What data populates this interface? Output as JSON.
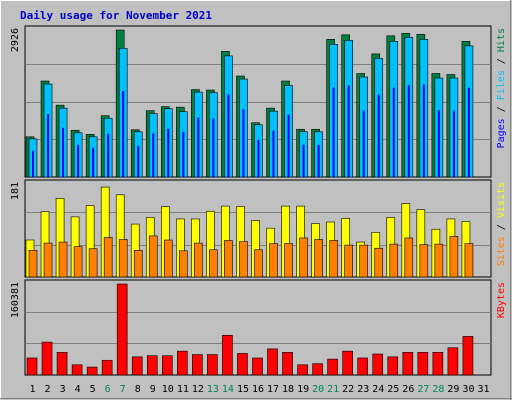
{
  "chart_data": {
    "type": "bar",
    "title": "Daily usage for November 2021",
    "categories": [
      "1",
      "2",
      "3",
      "4",
      "5",
      "6",
      "7",
      "8",
      "9",
      "10",
      "11",
      "12",
      "13",
      "14",
      "15",
      "16",
      "17",
      "18",
      "19",
      "20",
      "21",
      "22",
      "23",
      "24",
      "25",
      "26",
      "27",
      "28",
      "29",
      "30",
      "31"
    ],
    "weekend_days": [
      "6",
      "7",
      "13",
      "14",
      "20",
      "21",
      "27",
      "28"
    ],
    "panels": [
      {
        "id": "hits",
        "ymax_label": "2926",
        "ylim": [
          0,
          2926
        ],
        "legend": [
          "Pages",
          "/",
          "Files",
          "/",
          "Hits"
        ],
        "series": [
          {
            "name": "Hits",
            "values": [
              800,
              1910,
              1430,
              930,
              850,
              1220,
              2926,
              940,
              1320,
              1400,
              1390,
              1740,
              1730,
              2500,
              2010,
              1080,
              1370,
              1910,
              950,
              950,
              2740,
              2830,
              2060,
              2450,
              2810,
              2860,
              2840,
              2060,
              2040,
              2700,
              0
            ]
          },
          {
            "name": "Files",
            "values": [
              760,
              1850,
              1370,
              880,
              800,
              1170,
              2560,
              900,
              1260,
              1360,
              1300,
              1690,
              1680,
              2410,
              1950,
              1040,
              1310,
              1820,
              900,
              900,
              2640,
              2720,
              1990,
              2360,
              2700,
              2780,
              2740,
              1970,
              1970,
              2610,
              0
            ]
          },
          {
            "name": "Pages",
            "values": [
              520,
              1250,
              980,
              640,
              580,
              860,
              1710,
              620,
              870,
              960,
              900,
              1180,
              1160,
              1640,
              1350,
              740,
              920,
              1240,
              640,
              640,
              1780,
              1820,
              1320,
              1640,
              1780,
              1830,
              1840,
              1330,
              1320,
              1780,
              0
            ]
          }
        ],
        "colors": [
          "#008040",
          "#00c0ff",
          "#0000ff"
        ]
      },
      {
        "id": "visits",
        "ymax_label": "181",
        "ylim": [
          0,
          181
        ],
        "legend": [
          "Sites",
          "/",
          "Visits"
        ],
        "series": [
          {
            "name": "Visits",
            "values": [
              72,
              127,
              153,
              117,
              139,
              175,
              160,
              103,
              116,
              137,
              113,
              113,
              128,
              138,
              137,
              110,
              95,
              138,
              138,
              104,
              107,
              114,
              68,
              87,
              116,
              143,
              131,
              93,
              113,
              108,
              0
            ]
          },
          {
            "name": "Sites",
            "values": [
              52,
              66,
              68,
              59,
              55,
              77,
              73,
              52,
              80,
              72,
              51,
              66,
              53,
              71,
              69,
              53,
              65,
              65,
              76,
              73,
              71,
              62,
              62,
              56,
              64,
              76,
              63,
              64,
              79,
              65,
              0
            ]
          }
        ],
        "colors": [
          "#ffff00",
          "#ff8000"
        ]
      },
      {
        "id": "kbytes",
        "ymax_label": "160381",
        "ylim": [
          0,
          160381
        ],
        "legend": [
          "KBytes"
        ],
        "series": [
          {
            "name": "KBytes",
            "values": [
              30000,
              58000,
              40000,
              18000,
              14000,
              26000,
              160381,
              32000,
              34000,
              34000,
              42000,
              36000,
              36000,
              70000,
              38000,
              30000,
              46000,
              40000,
              18000,
              20000,
              28000,
              42000,
              30000,
              37000,
              32000,
              40000,
              40000,
              40000,
              48000,
              68000,
              0
            ]
          }
        ],
        "colors": [
          "#ff0000"
        ]
      }
    ]
  },
  "colors": {
    "title": "#0000cc",
    "background": "#c0c0c0",
    "grid": "#808080",
    "weekday_label": "#000000",
    "weekend_label": "#00805c",
    "hits": "#008040",
    "files": "#00c0ff",
    "pages": "#0000ff",
    "visits": "#ffff00",
    "sites": "#ff8000",
    "kbytes": "#ff0000"
  }
}
